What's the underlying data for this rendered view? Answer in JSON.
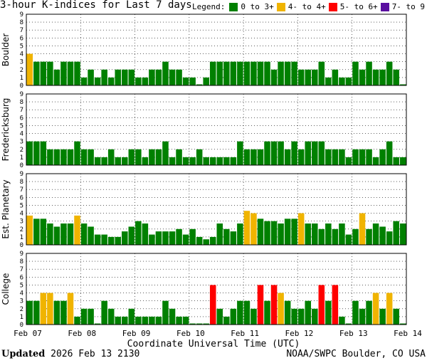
{
  "title": "3-hour K-indices for Last 7 days",
  "legend": {
    "label": "Legend:",
    "items": [
      {
        "label": "0 to 3+",
        "color": "#008000"
      },
      {
        "label": "4- to 4+",
        "color": "#f0b400"
      },
      {
        "label": "5- to 6+",
        "color": "#ff0000"
      },
      {
        "label": "7- to 9",
        "color": "#5a0fa0"
      }
    ]
  },
  "xlabel": "Coordinate Universal Time (UTC)",
  "footer": {
    "updated_label": "Updated",
    "updated_value": "2026 Feb 13 2130",
    "source": "NOAA/SWPC Boulder, CO USA"
  },
  "chart_data": {
    "type": "bar",
    "ylim": [
      0,
      9
    ],
    "yticks": [
      0,
      1,
      2,
      3,
      4,
      5,
      6,
      7,
      8,
      9
    ],
    "x_ticks": [
      "Feb 07",
      "Feb 08",
      "Feb 09",
      "Feb 10",
      "Feb 11",
      "Feb 12",
      "Feb 13",
      "Feb 14"
    ],
    "grid": true,
    "panels": [
      {
        "name": "Boulder",
        "values": [
          4,
          3,
          3,
          3,
          2,
          3,
          3,
          3,
          1,
          2,
          1,
          2,
          1,
          2,
          2,
          2,
          1,
          1,
          2,
          2,
          3,
          2,
          2,
          1,
          1,
          0,
          1,
          3,
          3,
          3,
          3,
          3,
          3,
          3,
          3,
          3,
          2,
          3,
          3,
          3,
          2,
          2,
          2,
          3,
          1,
          2,
          1,
          1,
          3,
          2,
          3,
          2,
          2,
          3,
          2,
          0
        ]
      },
      {
        "name": "Fredericksburg",
        "values": [
          3,
          3,
          3,
          2,
          2,
          2,
          2,
          3,
          2,
          2,
          1,
          1,
          2,
          1,
          1,
          2,
          2,
          1,
          2,
          2,
          3,
          1,
          2,
          1,
          1,
          2,
          1,
          1,
          1,
          1,
          1,
          3,
          2,
          2,
          2,
          3,
          3,
          3,
          2,
          3,
          2,
          3,
          3,
          3,
          2,
          2,
          2,
          1,
          2,
          2,
          2,
          1,
          2,
          3,
          1,
          1,
          2,
          1,
          2,
          2,
          0
        ]
      },
      {
        "name": "Est. Planetary",
        "values": [
          3.7,
          3.3,
          3.3,
          2.7,
          2.3,
          2.7,
          2.7,
          3.7,
          2.7,
          2.3,
          1.3,
          1.3,
          1,
          1,
          1.7,
          2.3,
          3,
          2.7,
          1.3,
          1.7,
          1.7,
          1.7,
          2,
          1.3,
          2,
          1,
          0.7,
          1,
          2.7,
          2,
          1.7,
          2.7,
          4.3,
          4,
          3.3,
          3,
          3,
          2.7,
          3.3,
          3.3,
          4,
          2.7,
          2.7,
          2,
          2.7,
          2,
          2.7,
          1.3,
          2,
          4,
          2,
          2.7,
          2.3,
          1.7,
          3,
          2.7
        ]
      },
      {
        "name": "College",
        "values": [
          3,
          3,
          4,
          4,
          3,
          3,
          4,
          1,
          2,
          2,
          0,
          3,
          2,
          1,
          1,
          2,
          1,
          1,
          1,
          1,
          3,
          2,
          1,
          1,
          0,
          0,
          0,
          5,
          2,
          1,
          2,
          3,
          3,
          2,
          5,
          3,
          5,
          4,
          3,
          2,
          2,
          3,
          2,
          5,
          3,
          5,
          1,
          0,
          3,
          2,
          3,
          4,
          2,
          4,
          2,
          0
        ]
      }
    ]
  }
}
